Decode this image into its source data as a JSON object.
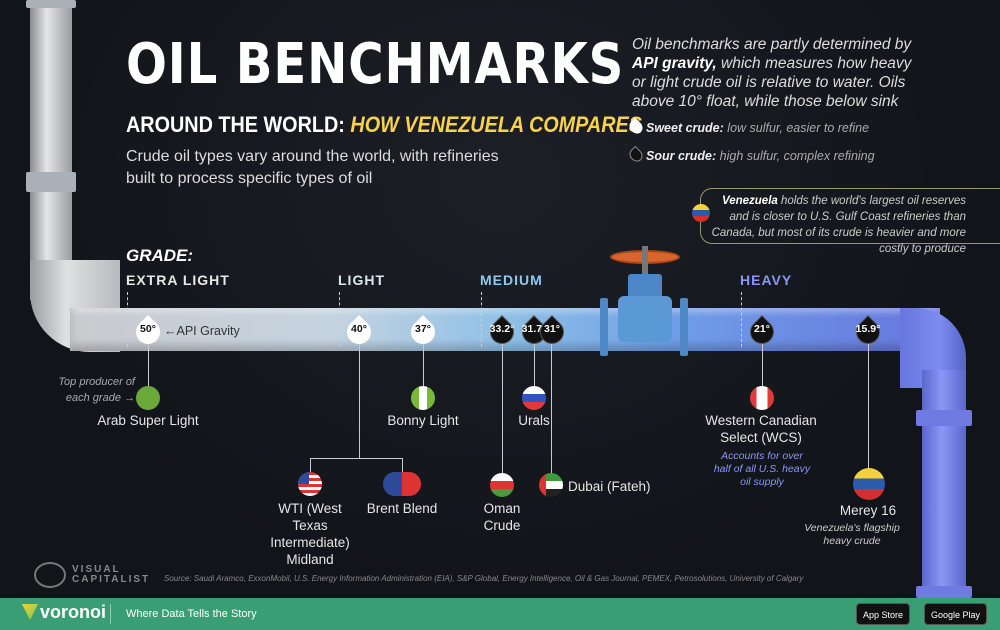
{
  "header": {
    "title": "OIL BENCHMARKS",
    "subtitle_prefix": "AROUND THE WORLD:",
    "subtitle_highlight": "HOW VENEZUELA COMPARES",
    "description": "Crude oil types vary around the world, with refineries built to process specific types of oil"
  },
  "intro": {
    "text_pre": "Oil benchmarks are partly determined by",
    "bold": "API gravity,",
    "text_post": "which measures how heavy or light crude oil is relative to water. Oils above 10° float, while those below sink"
  },
  "legend": {
    "sweet_label": "Sweet crude:",
    "sweet_desc": "low sulfur, easier to refine",
    "sour_label": "Sour crude:",
    "sour_desc": "high sulfur, complex refining"
  },
  "callout": {
    "bold": "Venezuela",
    "text": "holds the world's largest oil reserves and is closer to U.S. Gulf Coast refineries than Canada, but most of its crude is heavier and more costly to produce"
  },
  "grades": {
    "heading": "GRADE:",
    "extra_light": "EXTRA LIGHT",
    "light": "LIGHT",
    "medium": "MEDIUM",
    "heavy": "HEAVY"
  },
  "annotations": {
    "api_gravity": "←API Gravity",
    "top_producer": "Top producer of each grade →"
  },
  "benchmarks": [
    {
      "name": "Arab Super Light",
      "api": "50°",
      "type": "sweet",
      "flag": "saudi-arabia"
    },
    {
      "name": "WTI (West Texas Intermediate) Midland",
      "api": "40°",
      "type": "sweet",
      "flag": "united-states"
    },
    {
      "name": "Brent Blend",
      "api": "40°",
      "type": "sweet",
      "flag": "united-kingdom-norway"
    },
    {
      "name": "Bonny Light",
      "api": "37°",
      "type": "sweet",
      "flag": "nigeria"
    },
    {
      "name": "Oman Crude",
      "api": "33.2°",
      "type": "sour",
      "flag": "oman"
    },
    {
      "name": "Urals",
      "api": "31.7°",
      "type": "sour",
      "flag": "russia"
    },
    {
      "name": "Dubai (Fateh)",
      "api": "31°",
      "type": "sour",
      "flag": "uae"
    },
    {
      "name": "Western Canadian Select (WCS)",
      "api": "21°",
      "type": "sour",
      "flag": "canada",
      "note": "Accounts for over half of all U.S. heavy oil supply"
    },
    {
      "name": "Merey 16",
      "api": "15.9°",
      "type": "sour",
      "flag": "venezuela",
      "note": "Venezuela's flagship heavy crude"
    }
  ],
  "source": "Source: Saudi Aramco, ExxonMobil, U.S. Energy Information Administration (EIA), S&P Global, Energy Intelligence, Oil & Gas Journal, PEMEX, Petrosolutions, University of Calgary",
  "branding": {
    "vc_logo": "VISUAL CAPITALIST",
    "voronoi": "voronoi",
    "tagline": "Where Data Tells the Story",
    "app_store": "App Store",
    "google_play": "Google Play"
  },
  "colors": {
    "extra_light": "#dfe0e2",
    "light": "#cfe0ee",
    "medium": "#8fc8f0",
    "heavy": "#8b97f5",
    "footer": "#3a9e74",
    "highlight": "#f7d24a"
  }
}
